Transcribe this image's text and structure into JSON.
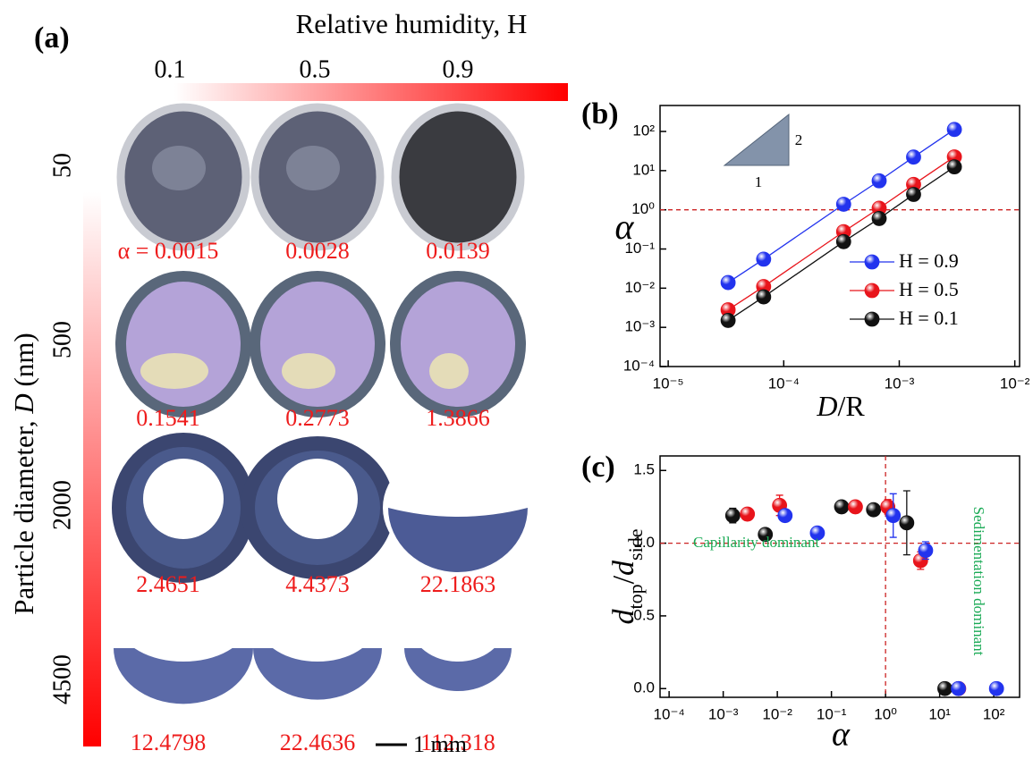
{
  "panel_a": {
    "label": "(a)",
    "x_title": "Relative humidity, H",
    "humidity": [
      "0.1",
      "0.5",
      "0.9"
    ],
    "y_title": [
      "Particle diameter, ",
      "D",
      " (nm)"
    ],
    "diameters": [
      "50",
      "500",
      "2000",
      "4500"
    ],
    "alpha": [
      [
        "α = 0.0015",
        "0.0028",
        "0.0139"
      ],
      [
        "0.1541",
        "0.2773",
        "1.3866"
      ],
      [
        "2.4651",
        "4.4373",
        "22.1863"
      ],
      [
        "12.4798",
        "22.4636",
        "112.318"
      ]
    ],
    "scale_bar": "1 mm"
  },
  "chart_data": [
    {
      "type": "scatter",
      "label": "(b)",
      "x_label": [
        "D",
        "/R"
      ],
      "y_label": "α",
      "log_x": true,
      "log_y": true,
      "xlim": [
        8.5e-06,
        0.011
      ],
      "ylim": [
        0.0001,
        460
      ],
      "xticks": [
        {
          "value": 1e-05,
          "label": "10⁻⁵"
        },
        {
          "value": 0.0001,
          "label": "10⁻⁴"
        },
        {
          "value": 0.001,
          "label": "10⁻³"
        },
        {
          "value": 0.01,
          "label": "10⁻²"
        }
      ],
      "yticks": [
        {
          "value": 0.0001,
          "label": "10⁻⁴"
        },
        {
          "value": 0.001,
          "label": "10⁻³"
        },
        {
          "value": 0.01,
          "label": "10⁻²"
        },
        {
          "value": 0.1,
          "label": "10⁻¹"
        },
        {
          "value": 1,
          "label": "10⁰"
        },
        {
          "value": 10,
          "label": "10¹"
        },
        {
          "value": 100,
          "label": "10²"
        }
      ],
      "x": [
        3.3e-05,
        6.7e-05,
        0.00033,
        0.00067,
        0.00133,
        0.003
      ],
      "series": [
        {
          "name": "H = 0.9",
          "color": "#2233ee",
          "values": [
            0.0139,
            0.055,
            1.3866,
            5.5,
            22.1863,
            112.318
          ]
        },
        {
          "name": "H = 0.5",
          "color": "#e8141b",
          "values": [
            0.0028,
            0.011,
            0.2773,
            1.1,
            4.4373,
            22.4636
          ]
        },
        {
          "name": "H = 0.1",
          "color": "#111111",
          "values": [
            0.0015,
            0.006,
            0.1541,
            0.6,
            2.4651,
            12.4798
          ]
        }
      ],
      "lines": true,
      "legend": "lower right",
      "hline": {
        "value": 1,
        "color": "#cc2222"
      },
      "annotations": [
        "2",
        "1"
      ]
    },
    {
      "type": "scatter",
      "label": "(c)",
      "x_label": "α",
      "y_label": [
        "d",
        "top",
        "/",
        "d",
        "side"
      ],
      "log_x": true,
      "log_y": false,
      "xlim": [
        6.8e-05,
        300
      ],
      "ylim": [
        -0.06,
        1.6
      ],
      "xticks": [
        {
          "value": 0.0001,
          "label": "10⁻⁴"
        },
        {
          "value": 0.001,
          "label": "10⁻³"
        },
        {
          "value": 0.01,
          "label": "10⁻²"
        },
        {
          "value": 0.1,
          "label": "10⁻¹"
        },
        {
          "value": 1,
          "label": "10⁰"
        },
        {
          "value": 10,
          "label": "10¹"
        },
        {
          "value": 100,
          "label": "10²"
        }
      ],
      "yticks": [
        {
          "value": 0,
          "label": "0.0"
        },
        0.5,
        {
          "value": 1,
          "label": "1.0"
        },
        1.5
      ],
      "series": [
        {
          "color": "#111111",
          "x": [
            0.0015,
            0.006,
            0.1541,
            0.6,
            2.4651,
            12.4798
          ],
          "values": [
            1.19,
            1.06,
            1.25,
            1.23,
            1.14,
            0.0
          ],
          "errors": [
            0.05,
            0.03,
            0,
            0,
            0.22,
            0
          ]
        },
        {
          "color": "#e8141b",
          "x": [
            0.0028,
            0.011,
            0.2773,
            1.1,
            4.4373,
            22.4636
          ],
          "values": [
            1.2,
            1.26,
            1.25,
            1.25,
            0.88,
            0.0
          ],
          "errors": [
            0.04,
            0.07,
            0,
            0.05,
            0.06,
            0
          ]
        },
        {
          "color": "#2233ee",
          "x": [
            0.0139,
            0.055,
            1.3866,
            5.5,
            22.1863,
            112.318
          ],
          "values": [
            1.19,
            1.07,
            1.19,
            0.95,
            0.0,
            0.0
          ],
          "errors": [
            0,
            0,
            0.15,
            0.06,
            0,
            0
          ]
        }
      ],
      "hline": {
        "value": 1,
        "color": "#cc2222"
      },
      "vline": {
        "value": 1,
        "color": "#cc2222"
      },
      "annotations": [
        "Capillarity dominant",
        "Sedimentation dominant"
      ],
      "annotation_color": "#1aaa55"
    }
  ]
}
